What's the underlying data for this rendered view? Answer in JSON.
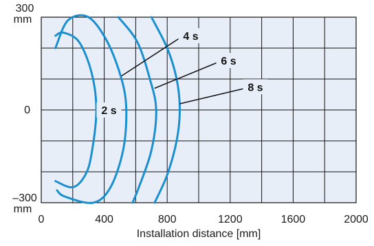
{
  "chart_data": {
    "type": "line",
    "title": "",
    "xlabel": "Installation distance [mm]",
    "ylabel": "",
    "xlim": [
      0,
      2000
    ],
    "ylim": [
      -300,
      300
    ],
    "x_ticks": [
      0,
      400,
      800,
      1200,
      1600,
      2000
    ],
    "x_tick_labels": [
      "0",
      "400",
      "800",
      "1200",
      "1600",
      "2000"
    ],
    "y_tick_labels": [
      {
        "value": 300,
        "line1": "300",
        "line2": "mm"
      },
      {
        "value": 0,
        "line1": "0",
        "line2": ""
      },
      {
        "value": -300,
        "line1": "–300",
        "line2": "mm"
      }
    ],
    "grid": true,
    "colors": {
      "background": "#e8eef8",
      "grid": "#111111",
      "curve": "#1a8fd0",
      "leader": "#111111"
    },
    "series": [
      {
        "name": "2 s",
        "points": [
          [
            90,
            240
          ],
          [
            140,
            250
          ],
          [
            240,
            220
          ],
          [
            320,
            120
          ],
          [
            350,
            0
          ],
          [
            320,
            -140
          ],
          [
            280,
            -210
          ],
          [
            200,
            -250
          ],
          [
            90,
            -230
          ]
        ]
      },
      {
        "name": "4 s",
        "points": [
          [
            90,
            200
          ],
          [
            170,
            290
          ],
          [
            300,
            300
          ],
          [
            420,
            220
          ],
          [
            510,
            100
          ],
          [
            540,
            0
          ],
          [
            520,
            -130
          ],
          [
            440,
            -250
          ],
          [
            330,
            -300
          ],
          [
            150,
            -280
          ],
          [
            100,
            -260
          ]
        ]
      },
      {
        "name": "6 s",
        "points": [
          [
            490,
            300
          ],
          [
            610,
            220
          ],
          [
            690,
            100
          ],
          [
            730,
            0
          ],
          [
            700,
            -130
          ],
          [
            620,
            -250
          ],
          [
            580,
            -300
          ]
        ]
      },
      {
        "name": "8 s",
        "points": [
          [
            700,
            300
          ],
          [
            800,
            200
          ],
          [
            860,
            100
          ],
          [
            880,
            0
          ],
          [
            860,
            -100
          ],
          [
            800,
            -210
          ],
          [
            720,
            -300
          ]
        ]
      }
    ],
    "annotations": [
      {
        "text": "2 s",
        "series": "2 s",
        "label_x": 430,
        "label_y": 0,
        "anchor_x": 330,
        "anchor_y": 0
      },
      {
        "text": "4 s",
        "series": "4 s",
        "label_x": 950,
        "label_y": 240,
        "anchor_x": 510,
        "anchor_y": 110
      },
      {
        "text": "6 s",
        "series": "6 s",
        "label_x": 1190,
        "label_y": 160,
        "anchor_x": 720,
        "anchor_y": 70
      },
      {
        "text": "8 s",
        "series": "8 s",
        "label_x": 1360,
        "label_y": 75,
        "anchor_x": 880,
        "anchor_y": 20
      }
    ]
  }
}
